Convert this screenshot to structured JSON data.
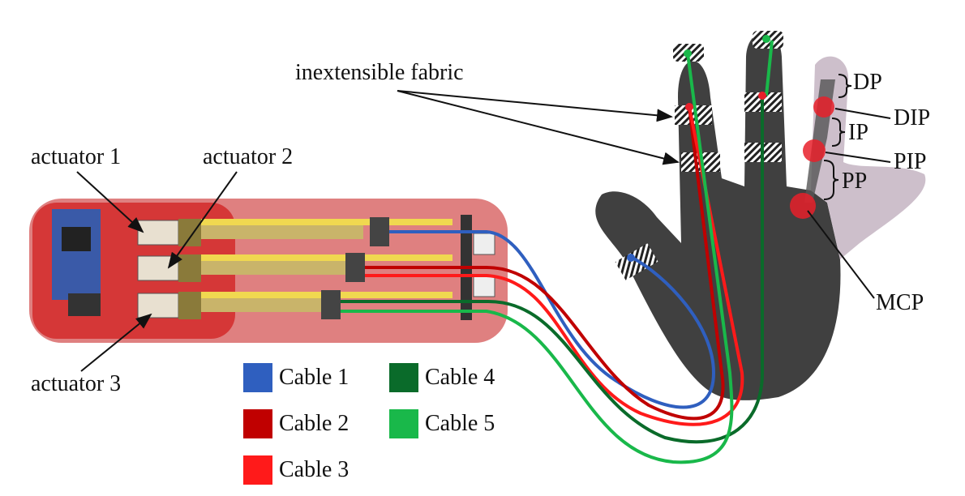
{
  "labels": {
    "actuator_1": "actuator 1",
    "actuator_2": "actuator 2",
    "actuator_3": "actuator 3",
    "fabric": "inextensible fabric",
    "dp": "DP",
    "dip": "DIP",
    "ip": "IP",
    "pip": "PIP",
    "pp": "PP",
    "mcp": "MCP"
  },
  "legend": [
    {
      "label": "Cable 1",
      "color": "#2f5fbf"
    },
    {
      "label": "Cable 2",
      "color": "#c00000"
    },
    {
      "label": "Cable 3",
      "color": "#ff1a1a"
    },
    {
      "label": "Cable 4",
      "color": "#0a6b2a"
    },
    {
      "label": "Cable 5",
      "color": "#19b84a"
    }
  ],
  "colors": {
    "board": "#c94a4a",
    "hand": "#404040",
    "finger_skin": "#cdbfcb",
    "joint_marker": "#e8202a"
  }
}
